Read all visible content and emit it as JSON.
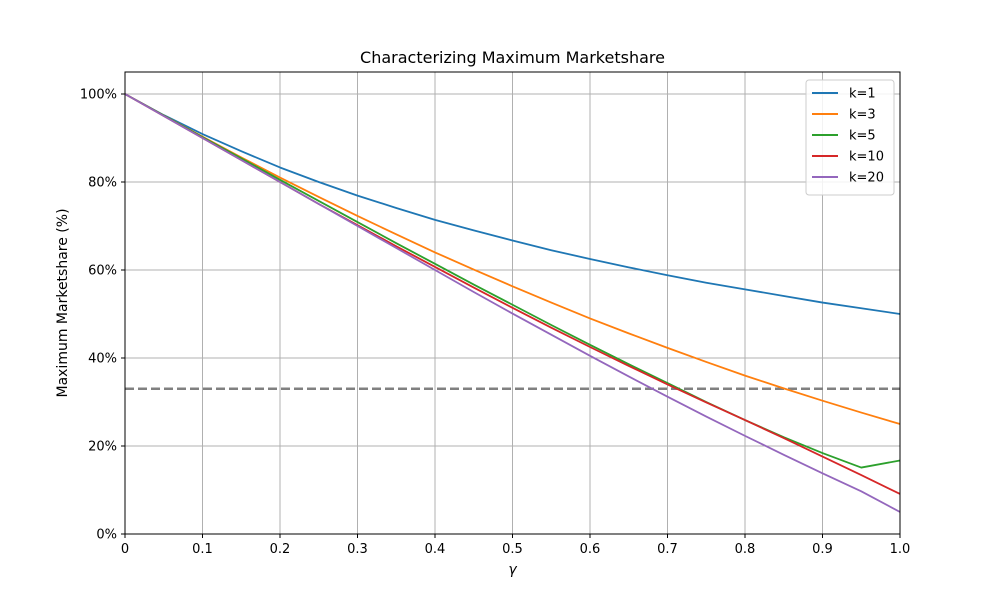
{
  "chart_data": {
    "type": "line",
    "title": "Characterizing Maximum Marketshare",
    "xlabel": "γ",
    "ylabel": "Maximum Marketshare (%)",
    "xlim": [
      0,
      1
    ],
    "ylim": [
      0,
      105
    ],
    "grid": true,
    "legend_position": "top-right",
    "x_ticks": [
      {
        "value": 0,
        "label": "0"
      },
      {
        "value": 0.1,
        "label": "0.1"
      },
      {
        "value": 0.2,
        "label": "0.2"
      },
      {
        "value": 0.3,
        "label": "0.3"
      },
      {
        "value": 0.4,
        "label": "0.4"
      },
      {
        "value": 0.5,
        "label": "0.5"
      },
      {
        "value": 0.6,
        "label": "0.6"
      },
      {
        "value": 0.7,
        "label": "0.7"
      },
      {
        "value": 0.8,
        "label": "0.8"
      },
      {
        "value": 0.9,
        "label": "0.9"
      },
      {
        "value": 1,
        "label": "1.0"
      }
    ],
    "y_ticks": [
      {
        "value": 0,
        "label": "0%"
      },
      {
        "value": 20,
        "label": "20%"
      },
      {
        "value": 40,
        "label": "40%"
      },
      {
        "value": 60,
        "label": "60%"
      },
      {
        "value": 80,
        "label": "80%"
      },
      {
        "value": 100,
        "label": "100%"
      }
    ],
    "x": [
      0,
      0.05,
      0.1,
      0.15,
      0.2,
      0.25,
      0.3,
      0.35,
      0.4,
      0.45,
      0.5,
      0.55,
      0.6,
      0.65,
      0.7,
      0.75,
      0.8,
      0.85,
      0.9,
      0.95,
      1.0
    ],
    "series": [
      {
        "name": "k=1",
        "color": "#1f77b4",
        "values": [
          100.0,
          95.2,
          90.9,
          87.0,
          83.3,
          80.0,
          76.9,
          74.1,
          71.4,
          69.0,
          66.7,
          64.5,
          62.5,
          60.6,
          58.8,
          57.1,
          55.6,
          54.1,
          52.6,
          51.3,
          50.0
        ]
      },
      {
        "name": "k=3",
        "color": "#ff7f0e",
        "values": [
          100.0,
          95.1,
          90.3,
          85.6,
          81.0,
          76.6,
          72.3,
          68.1,
          64.0,
          60.1,
          56.3,
          52.6,
          49.0,
          45.6,
          42.3,
          39.1,
          36.0,
          33.1,
          30.3,
          27.6,
          25.0
        ]
      },
      {
        "name": "k=5",
        "color": "#2ca02c",
        "values": [
          100.0,
          95.1,
          90.2,
          85.4,
          80.5,
          75.7,
          70.9,
          66.1,
          61.4,
          56.7,
          52.1,
          47.5,
          43.0,
          38.6,
          34.3,
          30.0,
          25.9,
          22.0,
          18.4,
          15.1,
          16.7
        ]
      },
      {
        "name": "k=10",
        "color": "#d62728",
        "values": [
          100.0,
          95.0,
          90.0,
          85.0,
          80.0,
          75.0,
          70.2,
          65.4,
          60.7,
          56.0,
          51.4,
          46.9,
          42.5,
          38.2,
          34.0,
          29.9,
          25.9,
          21.8,
          17.6,
          13.4,
          9.1
        ]
      },
      {
        "name": "k=20",
        "color": "#9467bd",
        "values": [
          100.0,
          95.0,
          90.0,
          85.0,
          80.0,
          75.0,
          70.0,
          65.0,
          60.0,
          55.0,
          50.1,
          45.3,
          40.5,
          35.8,
          31.2,
          26.7,
          22.3,
          18.0,
          13.8,
          9.7,
          5.0
        ]
      }
    ],
    "reference_line": {
      "y": 33,
      "color": "#808080",
      "style": "dashed"
    }
  }
}
